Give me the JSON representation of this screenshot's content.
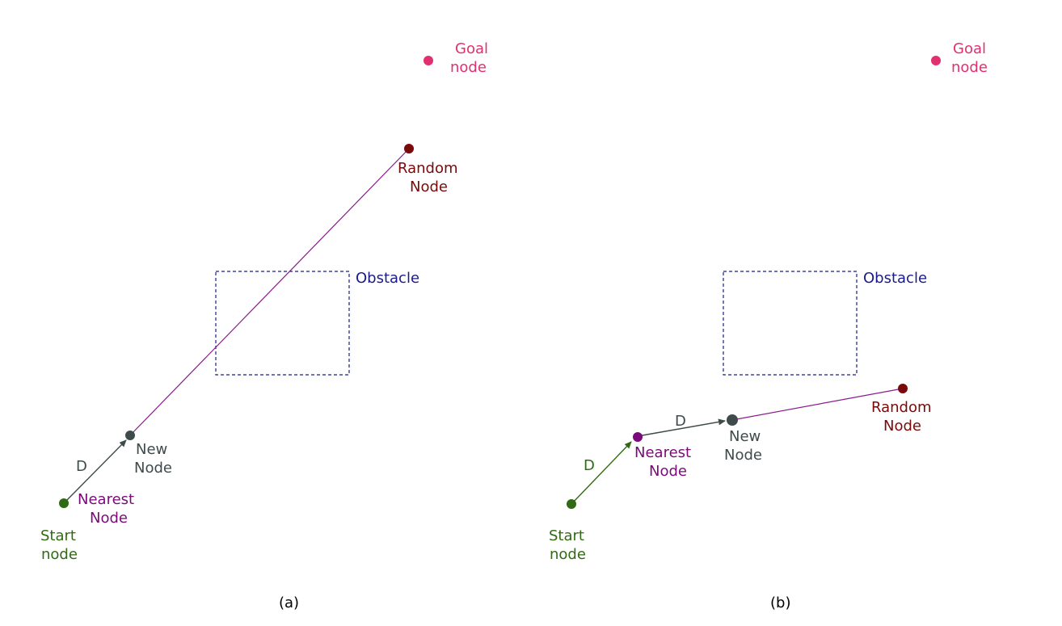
{
  "colors": {
    "goal": "#e0306f",
    "random": "#7a0a0a",
    "new_node": "#3f4a4a",
    "nearest": "#7a0a7a",
    "start": "#2e6b12",
    "line": "#8b1a8b",
    "obstacle": "#1a1a8c",
    "caption": "#000000"
  },
  "panel_a": {
    "caption": "(a)",
    "goal_label": [
      "Goal",
      "node"
    ],
    "random_label": [
      "Random",
      "Node"
    ],
    "obstacle_label": "Obstacle",
    "new_node_label": [
      "New",
      "Node"
    ],
    "nearest_label": [
      "Nearest",
      "Node"
    ],
    "start_label": [
      "Start",
      "node"
    ],
    "step_label": "D"
  },
  "panel_b": {
    "caption": "(b)",
    "goal_label": [
      "Goal",
      "node"
    ],
    "random_label": [
      "Random",
      "Node"
    ],
    "obstacle_label": "Obstacle",
    "new_node_label": [
      "New",
      "Node"
    ],
    "nearest_label": [
      "Nearest",
      "Node"
    ],
    "start_label": [
      "Start",
      "node"
    ],
    "step_label_1": "D",
    "step_label_2": "D"
  }
}
